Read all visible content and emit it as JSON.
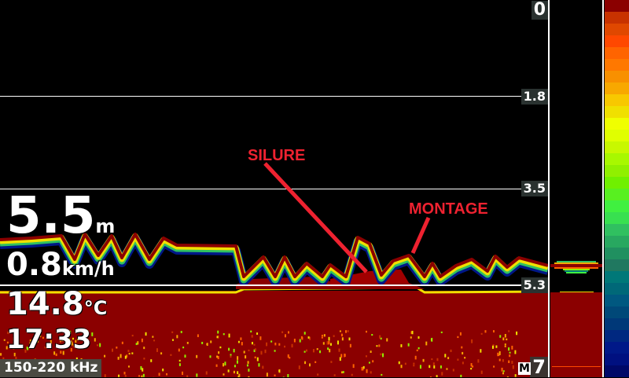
{
  "readouts": {
    "depth_value": "5.5",
    "depth_unit": "m",
    "speed_value": "0.8",
    "speed_unit": "km/h",
    "temp_value": "14.8",
    "temp_unit": "°C",
    "time": "17:33",
    "frequency": "150-220 kHz"
  },
  "depth_scale": {
    "top": "0",
    "marks": [
      "1.8",
      "3.5",
      "5.3"
    ],
    "bottom": "7",
    "range_mode": "M"
  },
  "annotations": [
    {
      "label": "SILURE",
      "color": "#ee2230"
    },
    {
      "label": "MONTAGE",
      "color": "#ee2230"
    }
  ],
  "colors": {
    "bottom_red": "#8b0000",
    "palette": [
      "#8b0000",
      "#c83200",
      "#e04800",
      "#ff4800",
      "#ff6400",
      "#ff7800",
      "#f89000",
      "#f8a800",
      "#f8c800",
      "#f0e000",
      "#f0ff00",
      "#e0ff00",
      "#c8f800",
      "#a8f800",
      "#90f000",
      "#70f000",
      "#58f020",
      "#40f040",
      "#38e050",
      "#30c060",
      "#28a860",
      "#209060",
      "#207860",
      "#007878",
      "#006878",
      "#005880",
      "#004878",
      "#003878",
      "#002880",
      "#001888",
      "#001080",
      "#000868"
    ]
  }
}
